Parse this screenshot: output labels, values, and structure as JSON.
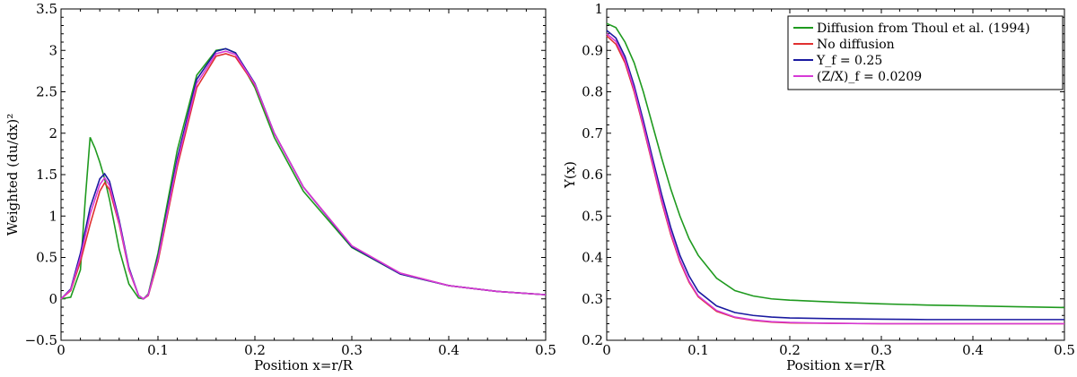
{
  "chart_data": [
    {
      "type": "line",
      "xlabel": "Position x=r/R",
      "ylabel": "Weighted (du/dx)²",
      "xlim": [
        0,
        0.5
      ],
      "ylim": [
        -0.5,
        3.5
      ],
      "xticks": [
        "0",
        "0.1",
        "0.2",
        "0.3",
        "0.4",
        "0.5"
      ],
      "yticks": [
        "−0.5",
        "0",
        "0.5",
        "1",
        "1.5",
        "2",
        "2.5",
        "3",
        "3.5"
      ],
      "grid": false,
      "series": [
        {
          "color": "#1f9a1f",
          "x": [
            0,
            0.01,
            0.02,
            0.025,
            0.03,
            0.035,
            0.04,
            0.045,
            0.05,
            0.06,
            0.07,
            0.08,
            0.085,
            0.09,
            0.1,
            0.12,
            0.14,
            0.16,
            0.17,
            0.18,
            0.2,
            0.22,
            0.25,
            0.3,
            0.35,
            0.4,
            0.45,
            0.5
          ],
          "y": [
            0,
            0.02,
            0.35,
            1.2,
            1.95,
            1.82,
            1.65,
            1.45,
            1.2,
            0.6,
            0.18,
            0.01,
            0,
            0.06,
            0.55,
            1.8,
            2.7,
            3.0,
            3.02,
            2.97,
            2.55,
            1.95,
            1.3,
            0.62,
            0.3,
            0.16,
            0.09,
            0.05
          ]
        },
        {
          "color": "#e03030",
          "x": [
            0,
            0.01,
            0.02,
            0.03,
            0.04,
            0.045,
            0.05,
            0.06,
            0.07,
            0.08,
            0.085,
            0.09,
            0.1,
            0.12,
            0.14,
            0.16,
            0.17,
            0.18,
            0.2,
            0.22,
            0.25,
            0.3,
            0.35,
            0.4,
            0.45,
            0.5
          ],
          "y": [
            0,
            0.1,
            0.45,
            0.9,
            1.3,
            1.4,
            1.32,
            0.9,
            0.35,
            0.04,
            0,
            0.04,
            0.45,
            1.6,
            2.55,
            2.93,
            2.96,
            2.92,
            2.58,
            2.0,
            1.35,
            0.64,
            0.31,
            0.16,
            0.09,
            0.05
          ]
        },
        {
          "color": "#1a1aa0",
          "x": [
            0,
            0.01,
            0.02,
            0.03,
            0.04,
            0.045,
            0.05,
            0.06,
            0.07,
            0.08,
            0.085,
            0.09,
            0.1,
            0.12,
            0.14,
            0.16,
            0.17,
            0.18,
            0.2,
            0.22,
            0.25,
            0.3,
            0.35,
            0.4,
            0.45,
            0.5
          ],
          "y": [
            0,
            0.12,
            0.55,
            1.1,
            1.45,
            1.51,
            1.42,
            0.95,
            0.38,
            0.04,
            0,
            0.05,
            0.5,
            1.7,
            2.65,
            2.99,
            3.02,
            2.97,
            2.6,
            2.0,
            1.35,
            0.63,
            0.3,
            0.16,
            0.09,
            0.05
          ]
        },
        {
          "color": "#d63ad6",
          "x": [
            0,
            0.01,
            0.02,
            0.03,
            0.04,
            0.045,
            0.05,
            0.06,
            0.07,
            0.08,
            0.085,
            0.09,
            0.1,
            0.12,
            0.14,
            0.16,
            0.17,
            0.18,
            0.2,
            0.22,
            0.25,
            0.3,
            0.35,
            0.4,
            0.45,
            0.5
          ],
          "y": [
            0,
            0.11,
            0.5,
            1.02,
            1.38,
            1.46,
            1.37,
            0.92,
            0.36,
            0.04,
            0,
            0.05,
            0.48,
            1.65,
            2.6,
            2.96,
            2.99,
            2.95,
            2.59,
            2.0,
            1.35,
            0.64,
            0.31,
            0.16,
            0.09,
            0.05
          ]
        }
      ]
    },
    {
      "type": "line",
      "xlabel": "Position x=r/R",
      "ylabel": "Y(x)",
      "xlim": [
        0,
        0.5
      ],
      "ylim": [
        0.2,
        1
      ],
      "xticks": [
        "0",
        "0.1",
        "0.2",
        "0.3",
        "0.4",
        "0.5"
      ],
      "yticks": [
        "0.2",
        "0.3",
        "0.4",
        "0.5",
        "0.6",
        "0.7",
        "0.8",
        "0.9",
        "1"
      ],
      "grid": false,
      "legend_position": "top-right",
      "series": [
        {
          "name": "Diffusion from Thoul et al. (1994)",
          "color": "#1f9a1f",
          "x": [
            0,
            0.01,
            0.02,
            0.03,
            0.04,
            0.05,
            0.06,
            0.07,
            0.08,
            0.09,
            0.1,
            0.12,
            0.14,
            0.16,
            0.18,
            0.2,
            0.25,
            0.3,
            0.35,
            0.4,
            0.45,
            0.5
          ],
          "y": [
            0.965,
            0.955,
            0.92,
            0.87,
            0.8,
            0.72,
            0.64,
            0.565,
            0.5,
            0.445,
            0.405,
            0.35,
            0.32,
            0.307,
            0.3,
            0.297,
            0.292,
            0.288,
            0.285,
            0.283,
            0.281,
            0.279
          ]
        },
        {
          "name": "No diffusion",
          "color": "#e03030",
          "x": [
            0,
            0.01,
            0.02,
            0.03,
            0.04,
            0.05,
            0.06,
            0.07,
            0.08,
            0.09,
            0.1,
            0.12,
            0.14,
            0.16,
            0.18,
            0.2,
            0.25,
            0.3,
            0.35,
            0.4,
            0.45,
            0.5
          ],
          "y": [
            0.935,
            0.915,
            0.87,
            0.8,
            0.715,
            0.625,
            0.535,
            0.455,
            0.39,
            0.34,
            0.305,
            0.27,
            0.255,
            0.248,
            0.244,
            0.242,
            0.241,
            0.24,
            0.24,
            0.24,
            0.24,
            0.24
          ]
        },
        {
          "name": "Y_f = 0.25",
          "color": "#1a1aa0",
          "x": [
            0,
            0.01,
            0.02,
            0.03,
            0.04,
            0.05,
            0.06,
            0.07,
            0.08,
            0.09,
            0.1,
            0.12,
            0.14,
            0.16,
            0.18,
            0.2,
            0.25,
            0.3,
            0.35,
            0.4,
            0.45,
            0.5
          ],
          "y": [
            0.948,
            0.93,
            0.885,
            0.815,
            0.73,
            0.64,
            0.552,
            0.472,
            0.405,
            0.355,
            0.318,
            0.283,
            0.267,
            0.26,
            0.256,
            0.254,
            0.252,
            0.251,
            0.25,
            0.25,
            0.25,
            0.25
          ]
        },
        {
          "name": "(Z/X)_f = 0.0209",
          "color": "#d63ad6",
          "x": [
            0,
            0.01,
            0.02,
            0.03,
            0.04,
            0.05,
            0.06,
            0.07,
            0.08,
            0.09,
            0.1,
            0.12,
            0.14,
            0.16,
            0.18,
            0.2,
            0.25,
            0.3,
            0.35,
            0.4,
            0.45,
            0.5
          ],
          "y": [
            0.94,
            0.922,
            0.877,
            0.806,
            0.72,
            0.63,
            0.54,
            0.46,
            0.394,
            0.343,
            0.307,
            0.272,
            0.256,
            0.249,
            0.245,
            0.243,
            0.241,
            0.24,
            0.24,
            0.24,
            0.24,
            0.24
          ]
        }
      ]
    }
  ]
}
